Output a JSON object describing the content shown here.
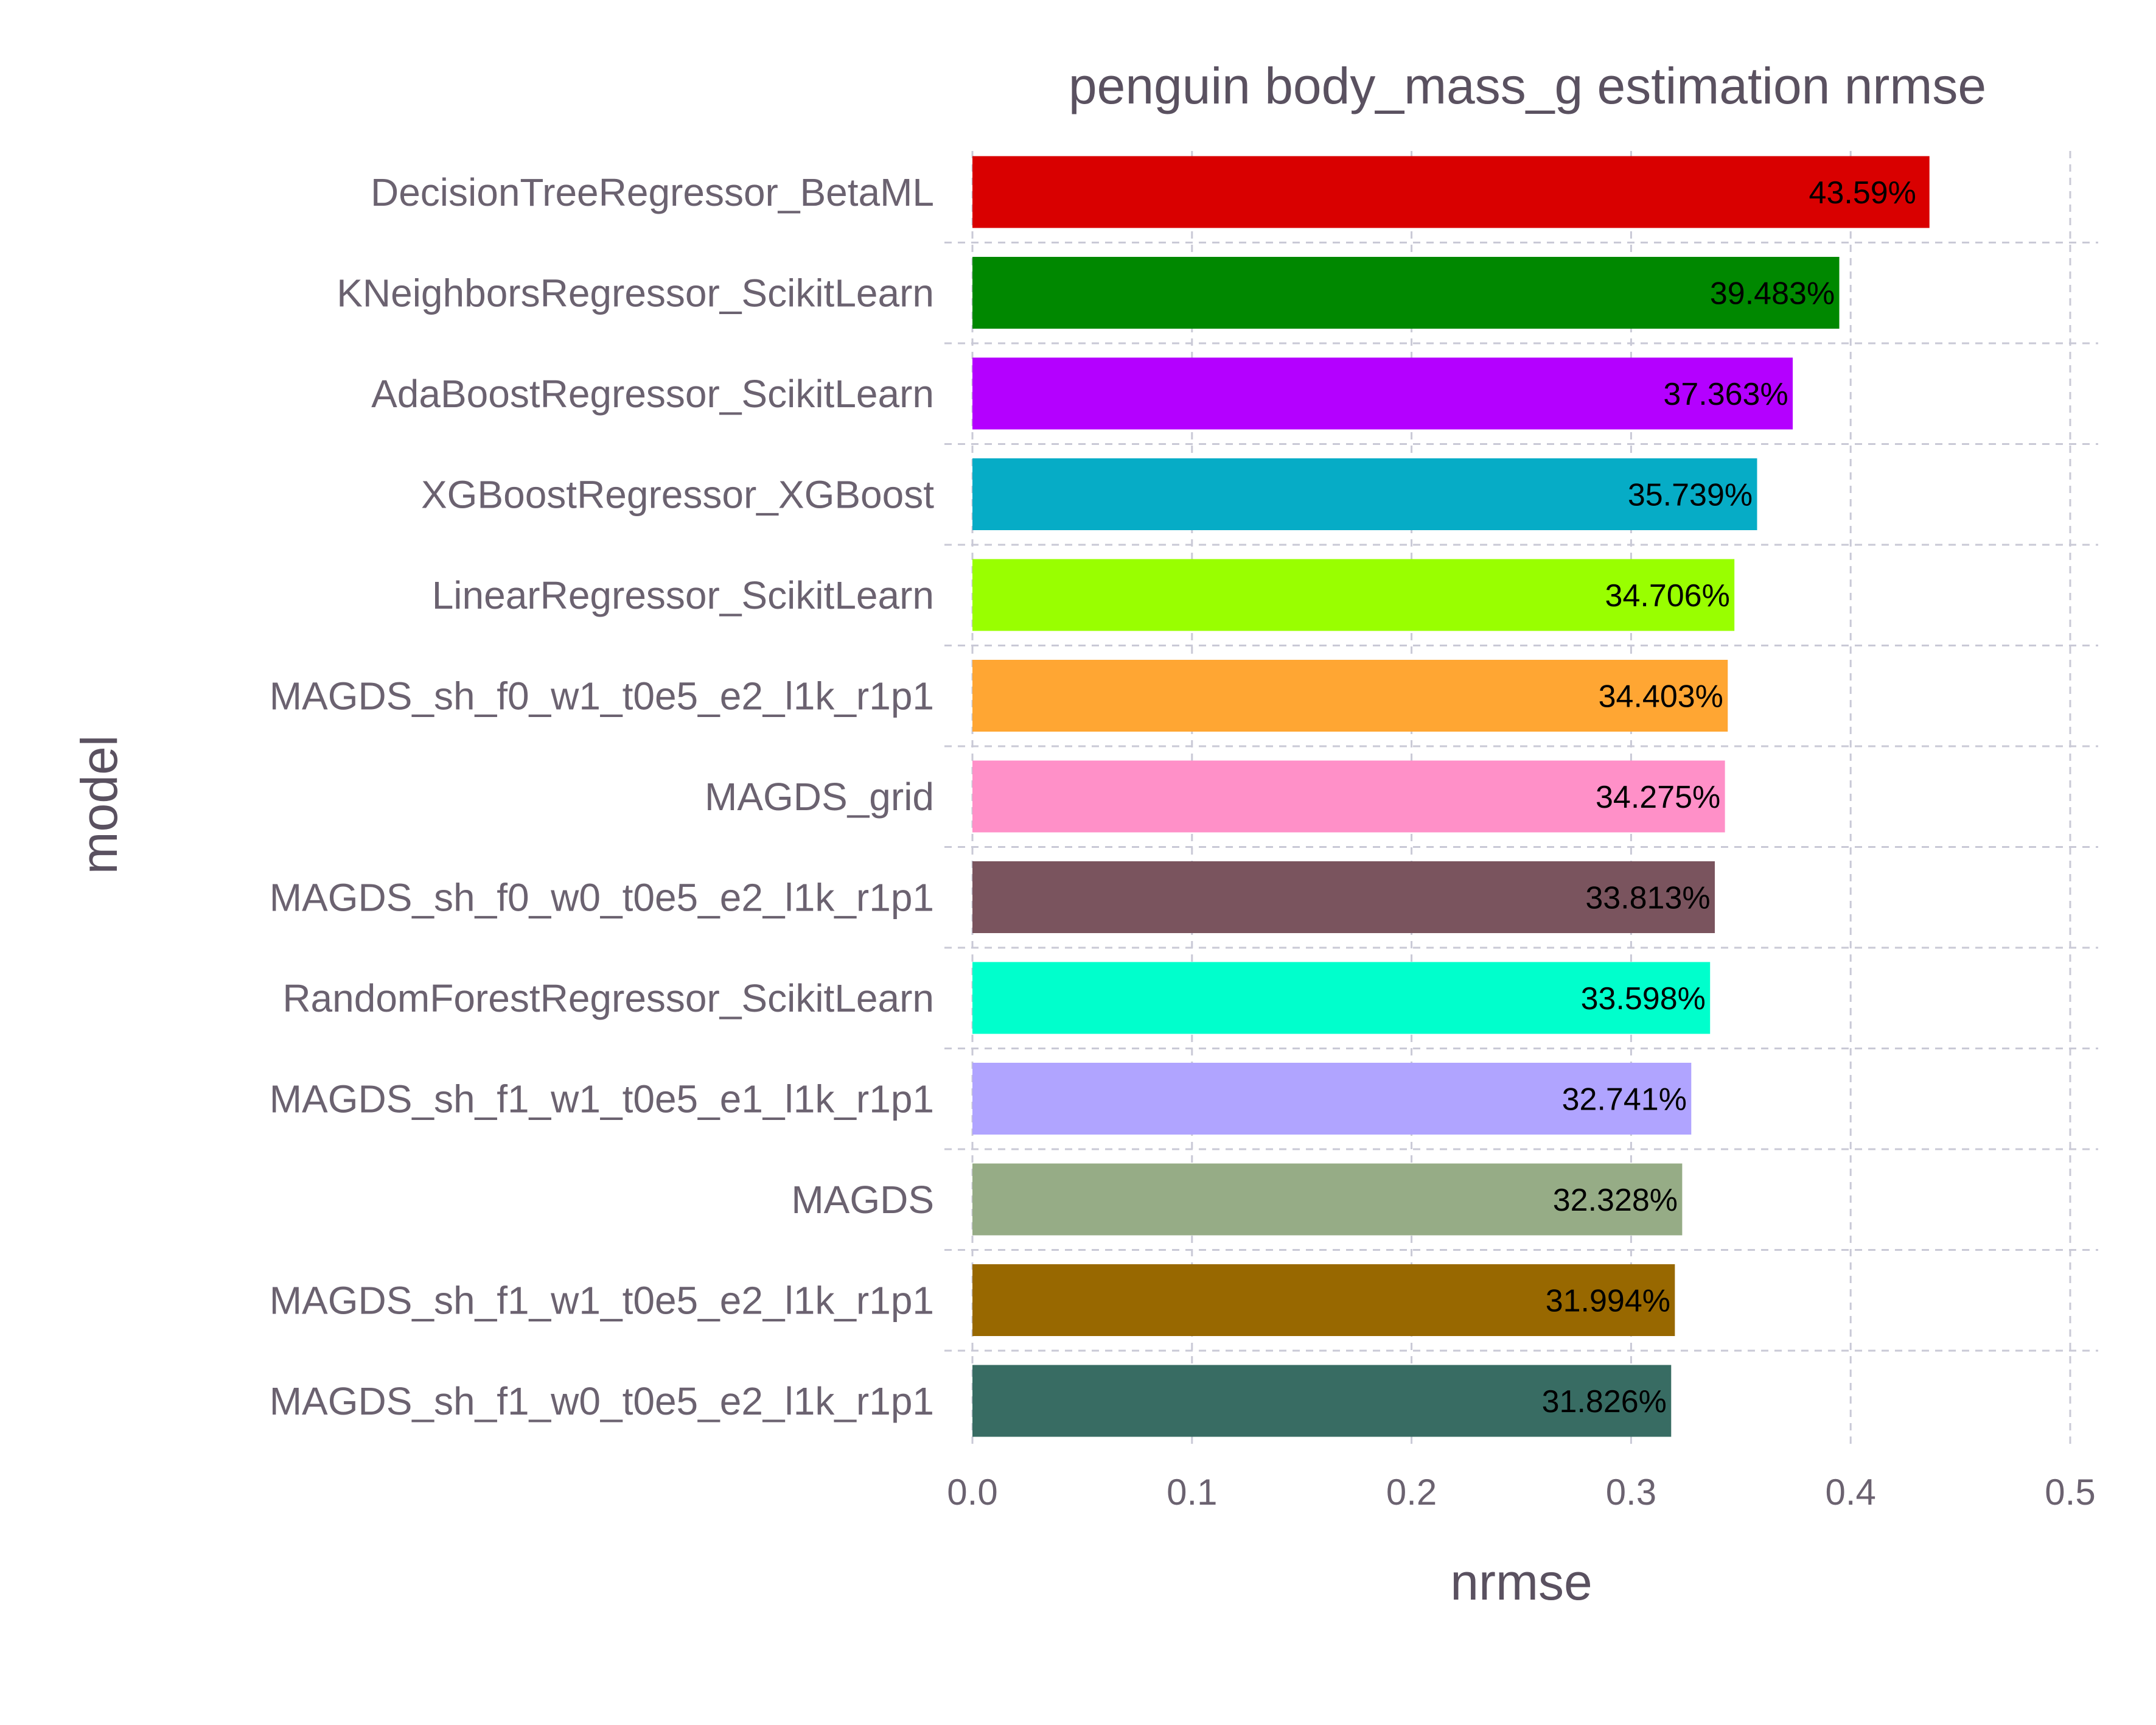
{
  "chart_data": {
    "type": "bar",
    "orientation": "horizontal",
    "title": "penguin body_mass_g estimation nrmse",
    "xlabel": "nrmse",
    "ylabel": "model",
    "xlim": [
      0,
      0.5
    ],
    "xticks": [
      "0.0",
      "0.1",
      "0.2",
      "0.3",
      "0.4",
      "0.5"
    ],
    "grid": true,
    "legend": "none",
    "categories": [
      "DecisionTreeRegressor_BetaML",
      "KNeighborsRegressor_ScikitLearn",
      "AdaBoostRegressor_ScikitLearn",
      "XGBoostRegressor_XGBoost",
      "LinearRegressor_ScikitLearn",
      "MAGDS_sh_f0_w1_t0e5_e2_l1k_r1p1",
      "MAGDS_grid",
      "MAGDS_sh_f0_w0_t0e5_e2_l1k_r1p1",
      "RandomForestRegressor_ScikitLearn",
      "MAGDS_sh_f1_w1_t0e5_e1_l1k_r1p1",
      "MAGDS",
      "MAGDS_sh_f1_w1_t0e5_e2_l1k_r1p1",
      "MAGDS_sh_f1_w0_t0e5_e2_l1k_r1p1"
    ],
    "values": [
      0.4359,
      0.39483,
      0.37363,
      0.35739,
      0.34706,
      0.34403,
      0.34275,
      0.33813,
      0.33598,
      0.32741,
      0.32328,
      0.31994,
      0.31826
    ],
    "labels": [
      "43.59%",
      "39.483%",
      "37.363%",
      "35.739%",
      "34.706%",
      "34.403%",
      "34.275%",
      "33.813%",
      "33.598%",
      "32.741%",
      "32.328%",
      "31.994%",
      "31.826%"
    ],
    "colors": [
      "#d90000",
      "#008800",
      "#b400ff",
      "#06acc6",
      "#99ff00",
      "#ffa633",
      "#ff90c8",
      "#7a545e",
      "#00ffcc",
      "#b0a4ff",
      "#96ac86",
      "#986800",
      "#386c63"
    ]
  }
}
